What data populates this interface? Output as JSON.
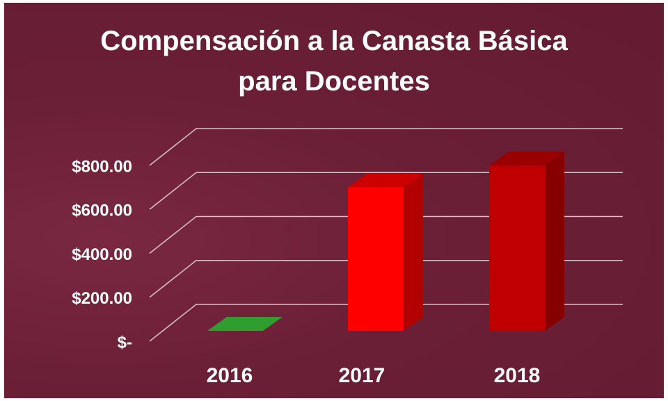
{
  "chart_data": {
    "type": "bar3d",
    "title": "Compensación a la Canasta Básica para Docentes",
    "categories": [
      "2016",
      "2017",
      "2018"
    ],
    "values": [
      0,
      654,
      752
    ],
    "colors": [
      "#2e9e2e",
      "#ff0000",
      "#c00000"
    ],
    "ylim": [
      0,
      800
    ],
    "yticks": [
      {
        "value": 0,
        "label": "$-"
      },
      {
        "value": 200,
        "label": "$200.00"
      },
      {
        "value": 400,
        "label": "$400.00"
      },
      {
        "value": 600,
        "label": "$600.00"
      },
      {
        "value": 800,
        "label": "$800.00"
      }
    ],
    "grid": true
  }
}
